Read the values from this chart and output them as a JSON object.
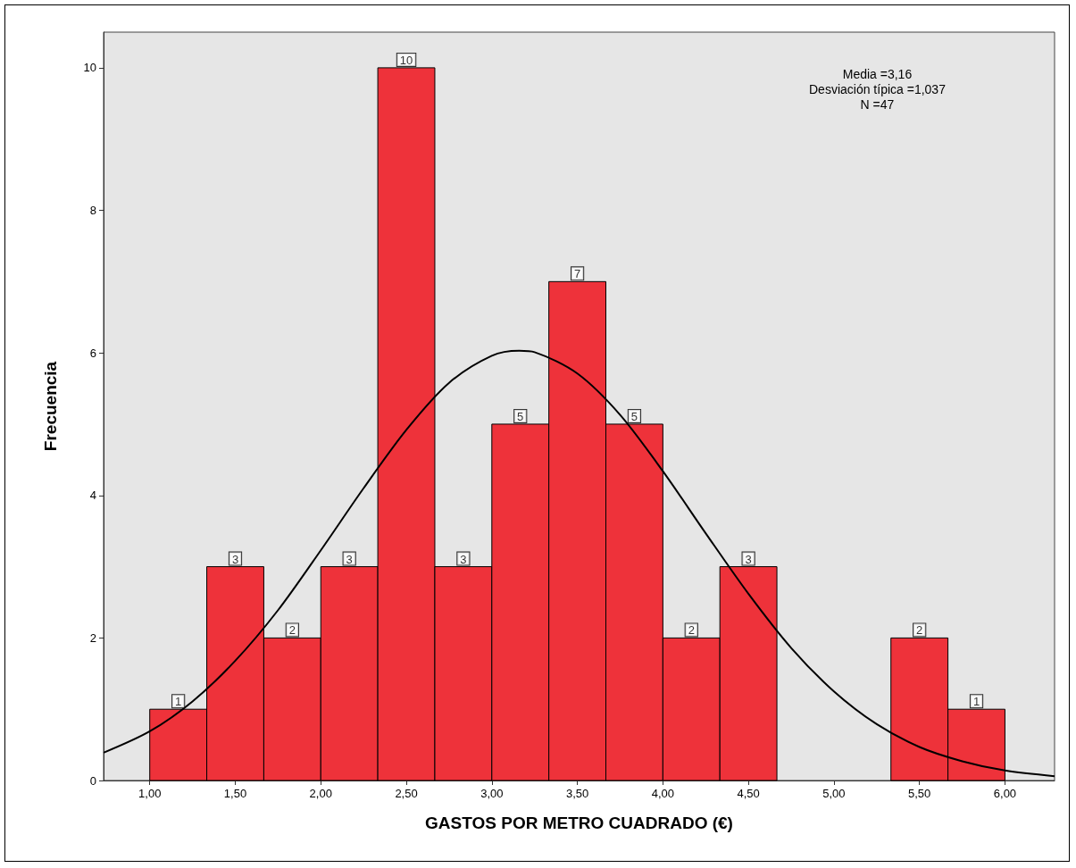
{
  "chart_data": {
    "type": "histogram",
    "xlabel": "GASTOS POR METRO CUADRADO (€)",
    "ylabel": "Frecuencia",
    "bins": [
      1.0,
      1.3333,
      1.6667,
      2.0,
      2.3333,
      2.6667,
      3.0,
      3.3333,
      3.6667,
      4.0,
      4.3333,
      4.6667,
      5.0,
      5.3333,
      5.6667,
      6.0
    ],
    "values": [
      1,
      3,
      2,
      3,
      10,
      3,
      5,
      7,
      5,
      2,
      3,
      0,
      0,
      2,
      1
    ],
    "value_labels": [
      "1",
      "3",
      "2",
      "3",
      "10",
      "3",
      "5",
      "7",
      "5",
      "2",
      "3",
      null,
      null,
      "2",
      "1"
    ],
    "color": "#ee323a",
    "series": [
      {
        "type": "line",
        "color": "#000000",
        "x": [
          0.73,
          1.0,
          1.25,
          1.5,
          1.75,
          2.0,
          2.25,
          2.5,
          2.75,
          3.0,
          3.16,
          3.25,
          3.5,
          3.75,
          4.0,
          4.25,
          4.5,
          4.75,
          5.0,
          5.25,
          5.5,
          5.75,
          6.0,
          6.29
        ],
        "values": [
          0.39,
          0.69,
          1.11,
          1.68,
          2.39,
          3.23,
          4.1,
          4.92,
          5.58,
          5.96,
          6.03,
          6.01,
          5.71,
          5.13,
          4.34,
          3.47,
          2.62,
          1.86,
          1.25,
          0.79,
          0.47,
          0.27,
          0.14,
          0.06
        ]
      }
    ],
    "marker": "none",
    "xlim": [
      0.73,
      6.29
    ],
    "xticks": [
      {
        "value": 1.0,
        "label": "1,00"
      },
      {
        "value": 1.5,
        "label": "1,50"
      },
      {
        "value": 2.0,
        "label": "2,00"
      },
      {
        "value": 2.5,
        "label": "2,50"
      },
      {
        "value": 3.0,
        "label": "3,00"
      },
      {
        "value": 3.5,
        "label": "3,50"
      },
      {
        "value": 4.0,
        "label": "4,00"
      },
      {
        "value": 4.5,
        "label": "4,50"
      },
      {
        "value": 5.0,
        "label": "5,00"
      },
      {
        "value": 5.5,
        "label": "5,50"
      },
      {
        "value": 6.0,
        "label": "6,00"
      }
    ],
    "ylim": [
      0,
      10.5
    ],
    "yticks": [
      0,
      2,
      4,
      6,
      8,
      10
    ],
    "grid": false,
    "legend": false,
    "annotations": [
      "Media =3,16",
      "Desviación típica =1,037",
      "N =47"
    ]
  }
}
